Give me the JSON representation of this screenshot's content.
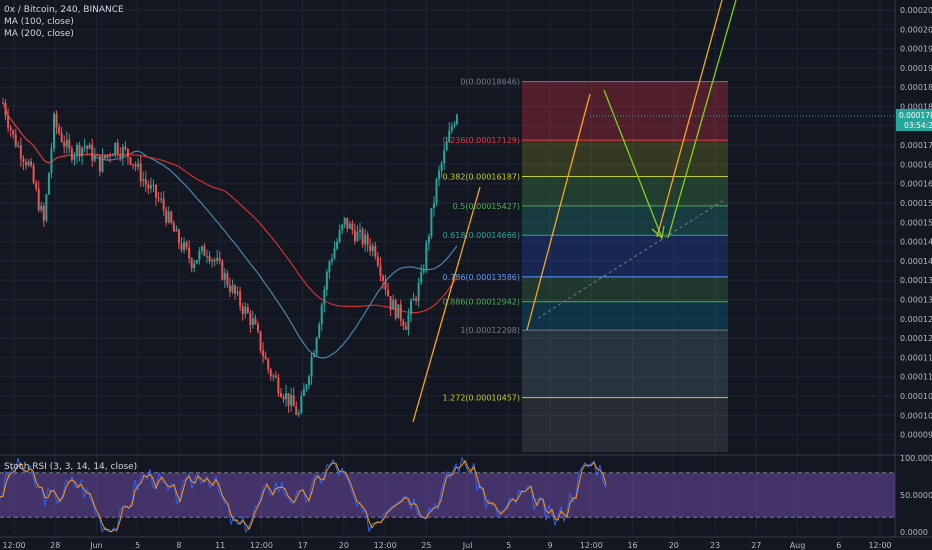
{
  "header": {
    "symbol": "0x / Bitcoin, 240, BINANCE",
    "ma100": "MA (100, close)",
    "ma200": "MA (200, close)"
  },
  "stoch": {
    "label": "Stoch RSI (3, 3, 14, 14, close)",
    "ticks": [
      "100.0000",
      "50.0000",
      "0.0000"
    ]
  },
  "price_badge": {
    "value": "0.00017874",
    "countdown": "03:54:27"
  },
  "colors": {
    "background": "#131722",
    "up": "#26a69a",
    "down": "#ef5350",
    "ma100": "#4a86a8",
    "ma200": "#d32f2f",
    "arrow_orange": "#f5a623",
    "arrow_green": "#7ed321"
  },
  "chart_data": {
    "type": "candlestick",
    "price_ticks": [
      "0.00020500",
      "0.00020000",
      "0.00019500",
      "0.00019000",
      "0.00018500",
      "0.00018000",
      "0.00017500",
      "0.00017000",
      "0.00016500",
      "0.00016000",
      "0.00015500",
      "0.00015000",
      "0.00014500",
      "0.00014000",
      "0.00013500",
      "0.00013000",
      "0.00012500",
      "0.00012000",
      "0.00011500",
      "0.00011000",
      "0.00010500",
      "0.00010000",
      "0.00009500"
    ],
    "x_ticks": [
      "12:00",
      "28",
      "Jun",
      "5",
      "8",
      "11",
      "12:00",
      "17",
      "20",
      "12:00",
      "25",
      "Jul",
      "5",
      "9",
      "12:00",
      "16",
      "20",
      "23",
      "27",
      "Aug",
      "6",
      "12:00"
    ],
    "fib_levels": [
      {
        "label": "0(0.00018646)",
        "price": 0.00018646,
        "color": "#787b86"
      },
      {
        "label": "0.236(0.00017129)",
        "price": 0.00017129,
        "color": "#f23645"
      },
      {
        "label": "0.382(0.00016187)",
        "price": 0.00016187,
        "color": "#c0ca33"
      },
      {
        "label": "0.5(0.00015427)",
        "price": 0.00015427,
        "color": "#4caf50"
      },
      {
        "label": "0.618(0.00014666)",
        "price": 0.00014666,
        "color": "#26a69a"
      },
      {
        "label": "0.786(0.00013586)",
        "price": 0.00013586,
        "color": "#5b9cf6"
      },
      {
        "label": "0.886(0.00012942)",
        "price": 0.00012942,
        "color": "#4caf50"
      },
      {
        "label": "1(0.00012208)",
        "price": 0.00012208,
        "color": "#787b86"
      },
      {
        "label": "1.272(0.00010457)",
        "price": 0.00010457,
        "color": "#c0ca33"
      }
    ],
    "price_series": [
      {
        "t": 0,
        "p": 0.000181
      },
      {
        "t": 2,
        "p": 0.000172
      },
      {
        "t": 5,
        "p": 0.000165
      },
      {
        "t": 8,
        "p": 0.00015
      },
      {
        "t": 10,
        "p": 0.000176
      },
      {
        "t": 13,
        "p": 0.000168
      },
      {
        "t": 16,
        "p": 0.00017
      },
      {
        "t": 19,
        "p": 0.000165
      },
      {
        "t": 22,
        "p": 0.00017
      },
      {
        "t": 25,
        "p": 0.000167
      },
      {
        "t": 28,
        "p": 0.00016
      },
      {
        "t": 31,
        "p": 0.000155
      },
      {
        "t": 34,
        "p": 0.000146
      },
      {
        "t": 37,
        "p": 0.00014
      },
      {
        "t": 40,
        "p": 0.000143
      },
      {
        "t": 43,
        "p": 0.000137
      },
      {
        "t": 46,
        "p": 0.00013
      },
      {
        "t": 49,
        "p": 0.000124
      },
      {
        "t": 52,
        "p": 0.000112
      },
      {
        "t": 55,
        "p": 0.000106
      },
      {
        "t": 58,
        "p": 0.0001
      },
      {
        "t": 61,
        "p": 0.000118
      },
      {
        "t": 64,
        "p": 0.00014
      },
      {
        "t": 67,
        "p": 0.00015
      },
      {
        "t": 70,
        "p": 0.000146
      },
      {
        "t": 73,
        "p": 0.000143
      },
      {
        "t": 76,
        "p": 0.000129
      },
      {
        "t": 79,
        "p": 0.000124
      },
      {
        "t": 82,
        "p": 0.000135
      },
      {
        "t": 85,
        "p": 0.00016
      },
      {
        "t": 88,
        "p": 0.000175
      },
      {
        "t": 89,
        "p": 0.000179
      }
    ]
  }
}
